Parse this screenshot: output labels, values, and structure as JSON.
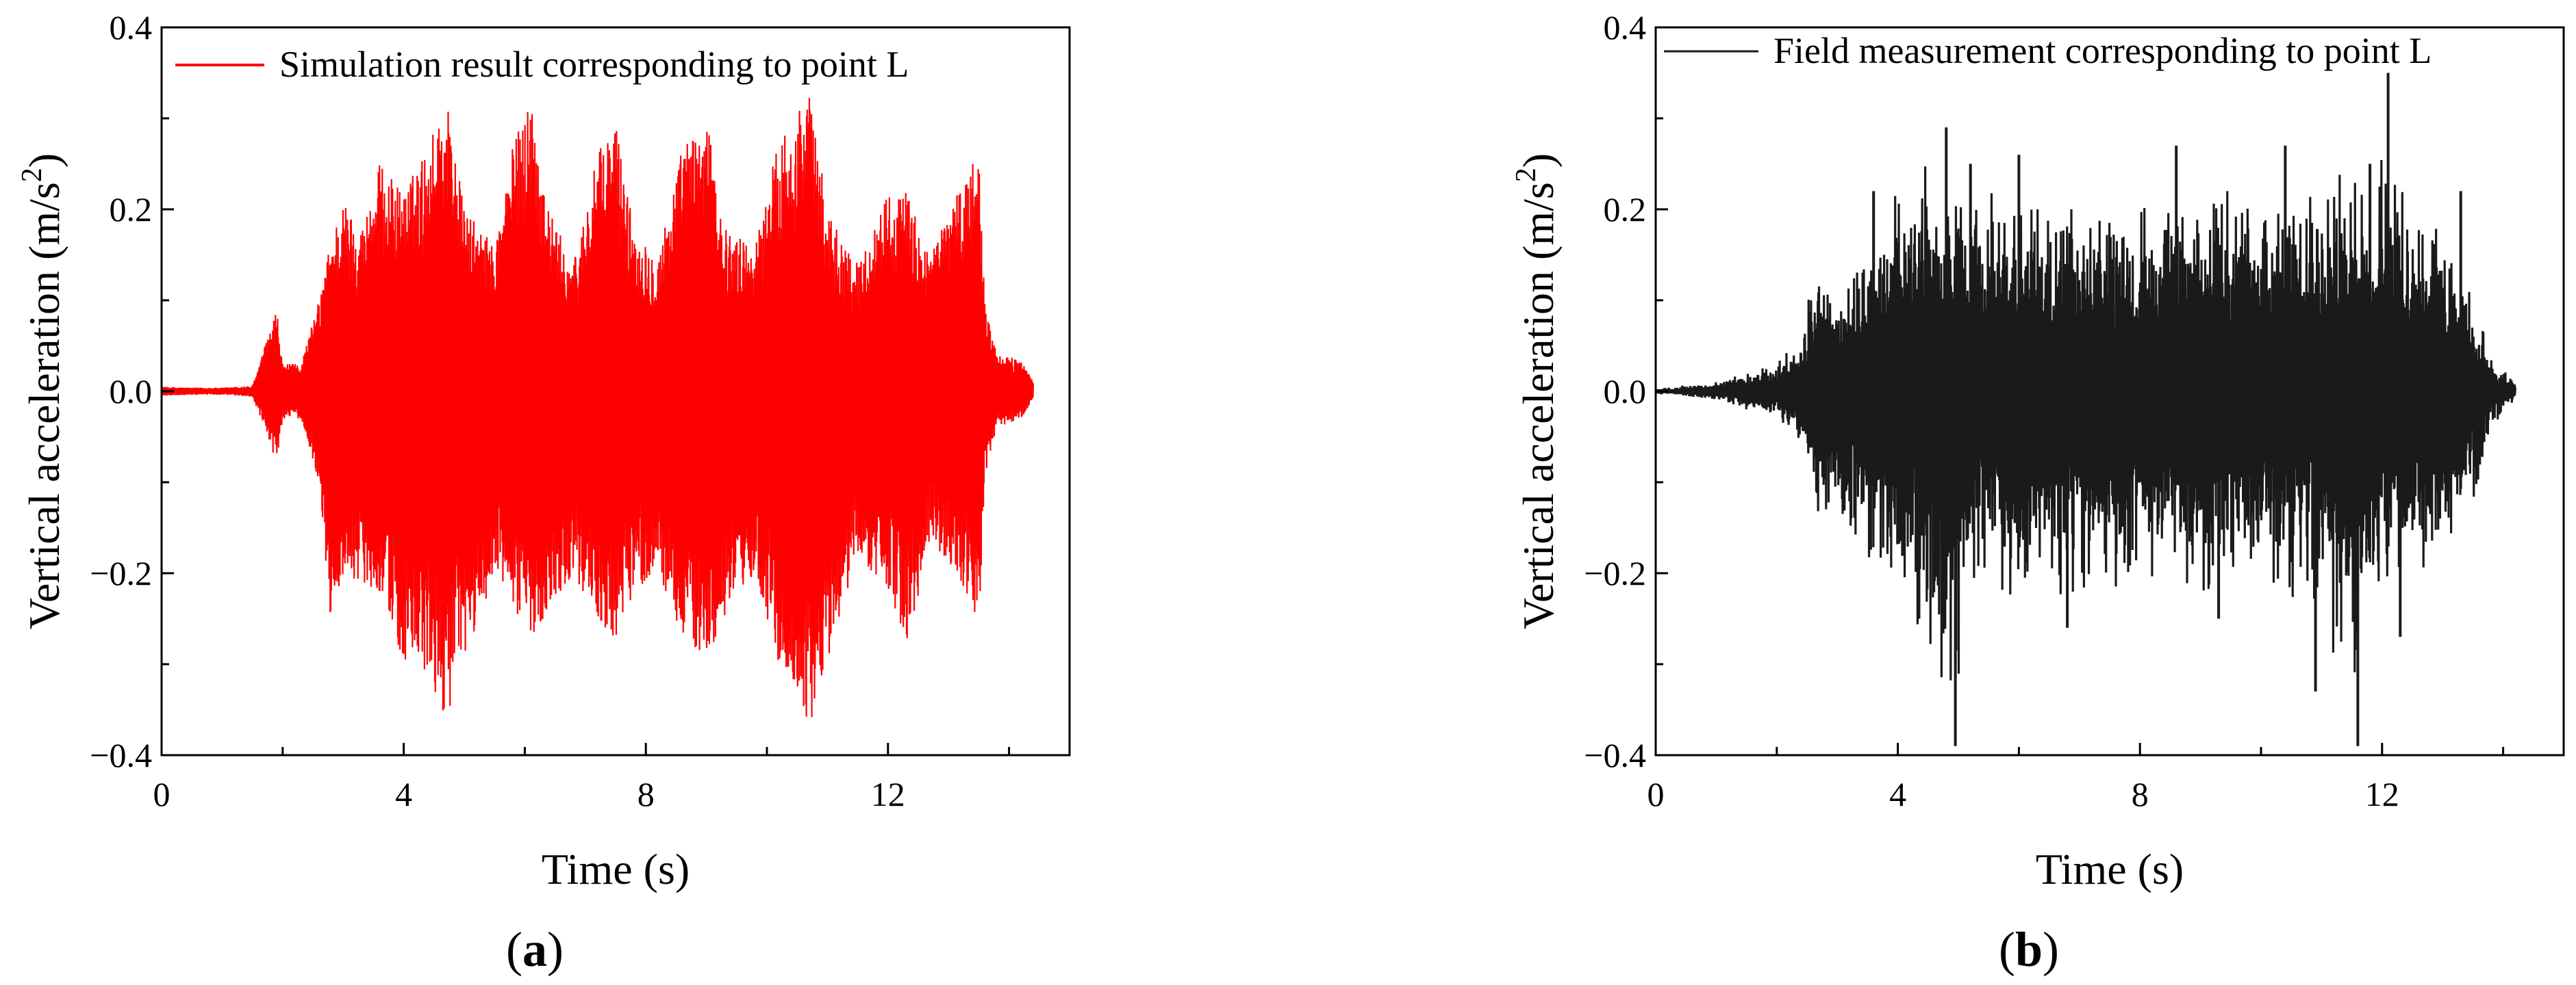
{
  "chart_data": [
    {
      "type": "line",
      "panel_label": "a",
      "xlabel": "Time (s)",
      "ylabel": "Vertical acceleration (m/s",
      "ylabel_sup": "2",
      "ylabel_end": ")",
      "xlim": [
        0,
        15
      ],
      "ylim": [
        -0.4,
        0.4
      ],
      "xticks": [
        0,
        4,
        8,
        12
      ],
      "yticks": [
        -0.4,
        -0.2,
        0.0,
        0.2,
        0.4
      ],
      "ytick_labels": [
        "−0.4",
        "−0.2",
        "0.0",
        "0.2",
        "0.4"
      ],
      "grid": false,
      "legend": "top-left",
      "series": [
        {
          "name": "Simulation result corresponding to point L",
          "color": "#ff0000",
          "t_range": [
            0,
            14.4
          ],
          "envelope": [
            [
              0.0,
              0.005,
              -0.005
            ],
            [
              0.5,
              0.004,
              -0.004
            ],
            [
              1.0,
              0.004,
              -0.004
            ],
            [
              1.5,
              0.006,
              -0.006
            ],
            [
              1.9,
              0.09,
              -0.08
            ],
            [
              2.0,
              0.03,
              -0.03
            ],
            [
              2.3,
              0.03,
              -0.03
            ],
            [
              2.6,
              0.1,
              -0.1
            ],
            [
              2.8,
              0.17,
              -0.26
            ],
            [
              3.0,
              0.21,
              -0.2
            ],
            [
              3.3,
              0.18,
              -0.21
            ],
            [
              3.6,
              0.25,
              -0.22
            ],
            [
              4.0,
              0.22,
              -0.3
            ],
            [
              4.4,
              0.27,
              -0.32
            ],
            [
              4.7,
              0.33,
              -0.36
            ],
            [
              5.0,
              0.2,
              -0.3
            ],
            [
              5.5,
              0.16,
              -0.2
            ],
            [
              5.8,
              0.27,
              -0.24
            ],
            [
              6.1,
              0.33,
              -0.27
            ],
            [
              6.4,
              0.2,
              -0.24
            ],
            [
              6.8,
              0.14,
              -0.2
            ],
            [
              7.2,
              0.26,
              -0.25
            ],
            [
              7.5,
              0.3,
              -0.28
            ],
            [
              7.8,
              0.18,
              -0.22
            ],
            [
              8.2,
              0.15,
              -0.2
            ],
            [
              8.6,
              0.27,
              -0.27
            ],
            [
              9.0,
              0.3,
              -0.3
            ],
            [
              9.3,
              0.18,
              -0.25
            ],
            [
              9.8,
              0.16,
              -0.2
            ],
            [
              10.2,
              0.28,
              -0.3
            ],
            [
              10.7,
              0.33,
              -0.37
            ],
            [
              11.0,
              0.2,
              -0.3
            ],
            [
              11.5,
              0.14,
              -0.18
            ],
            [
              12.0,
              0.22,
              -0.22
            ],
            [
              12.3,
              0.22,
              -0.28
            ],
            [
              12.7,
              0.15,
              -0.17
            ],
            [
              13.1,
              0.22,
              -0.2
            ],
            [
              13.5,
              0.26,
              -0.26
            ],
            [
              13.6,
              0.1,
              -0.1
            ],
            [
              13.8,
              0.04,
              -0.04
            ],
            [
              14.2,
              0.035,
              -0.03
            ],
            [
              14.4,
              0.01,
              -0.01
            ]
          ]
        }
      ]
    },
    {
      "type": "line",
      "panel_label": "b",
      "xlabel": "Time (s)",
      "ylabel": "Vertical acceleration (m/s",
      "ylabel_sup": "2",
      "ylabel_end": ")",
      "xlim": [
        0,
        15
      ],
      "ylim": [
        -0.4,
        0.4
      ],
      "xticks": [
        0,
        4,
        8,
        12
      ],
      "yticks": [
        -0.4,
        -0.2,
        0.0,
        0.2,
        0.4
      ],
      "ytick_labels": [
        "−0.4",
        "−0.2",
        "0.0",
        "0.2",
        "0.4"
      ],
      "grid": false,
      "legend": "top-left",
      "series": [
        {
          "name": "Field measurement corresponding to point L",
          "color": "#1a1a1a",
          "t_range": [
            0,
            14.2
          ],
          "envelope": [
            [
              0.0,
              0.003,
              -0.003
            ],
            [
              1.0,
              0.01,
              -0.01
            ],
            [
              2.0,
              0.03,
              -0.03
            ],
            [
              2.4,
              0.06,
              -0.06
            ],
            [
              2.6,
              0.13,
              -0.13
            ],
            [
              3.0,
              0.12,
              -0.15
            ],
            [
              3.5,
              0.16,
              -0.18
            ],
            [
              4.0,
              0.22,
              -0.23
            ],
            [
              4.5,
              0.25,
              -0.27
            ],
            [
              4.9,
              0.2,
              -0.35
            ],
            [
              5.3,
              0.24,
              -0.2
            ],
            [
              6.0,
              0.2,
              -0.23
            ],
            [
              7.0,
              0.2,
              -0.22
            ],
            [
              8.0,
              0.2,
              -0.22
            ],
            [
              9.0,
              0.22,
              -0.22
            ],
            [
              10.0,
              0.22,
              -0.2
            ],
            [
              11.0,
              0.22,
              -0.25
            ],
            [
              11.5,
              0.25,
              -0.35
            ],
            [
              12.0,
              0.27,
              -0.2
            ],
            [
              12.5,
              0.2,
              -0.22
            ],
            [
              13.0,
              0.18,
              -0.2
            ],
            [
              13.5,
              0.1,
              -0.12
            ],
            [
              13.8,
              0.04,
              -0.04
            ],
            [
              14.2,
              0.01,
              -0.01
            ]
          ],
          "spikes": [
            [
              4.8,
              0.29
            ],
            [
              4.95,
              -0.39
            ],
            [
              5.2,
              0.25
            ],
            [
              6.0,
              0.26
            ],
            [
              8.6,
              0.27
            ],
            [
              10.4,
              0.27
            ],
            [
              11.6,
              -0.39
            ],
            [
              11.8,
              0.25
            ],
            [
              12.1,
              0.35
            ],
            [
              12.3,
              -0.27
            ],
            [
              10.9,
              -0.33
            ],
            [
              3.6,
              0.22
            ],
            [
              4.35,
              -0.25
            ],
            [
              6.8,
              -0.26
            ],
            [
              9.3,
              -0.25
            ],
            [
              13.3,
              0.22
            ]
          ]
        }
      ]
    }
  ]
}
